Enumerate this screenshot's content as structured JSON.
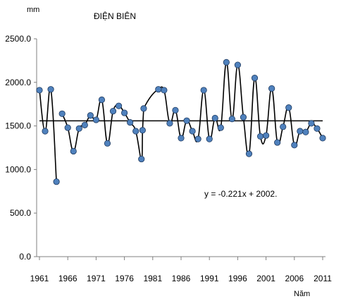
{
  "chart_data": {
    "type": "line",
    "title": "ĐIỆN BIÊN",
    "ylabel": "mm",
    "xlabel": "Năm",
    "ylim": [
      0,
      2500
    ],
    "xlim": [
      1961,
      2011
    ],
    "yticks": [
      0,
      500,
      1000,
      1500,
      2000,
      2500
    ],
    "ytick_labels": [
      "0.0",
      "500.0",
      "1000.0",
      "1500.0",
      "2000.0",
      "2500.0"
    ],
    "xticks": [
      1961,
      1966,
      1971,
      1976,
      1981,
      1986,
      1991,
      1996,
      2001,
      2006,
      2011
    ],
    "xtick_labels": [
      "1961",
      "1966",
      "1971",
      "1976",
      "1981",
      "1986",
      "1991",
      "1996",
      "2001",
      "2006",
      "2011"
    ],
    "grid": false,
    "annotation": "y = -0.221x + 2002.",
    "colors": {
      "marker": "#4f81bd",
      "line": "#000000"
    },
    "segments": [
      {
        "x": [
          1961,
          1962,
          1963,
          1964
        ],
        "y": [
          1910,
          1440,
          1920,
          860
        ]
      },
      {
        "x": [
          1965,
          1966,
          1967,
          1968,
          1969,
          1970,
          1971,
          1972,
          1973,
          1974,
          1975,
          1976,
          1977,
          1978,
          1979,
          1979.2,
          1979.4
        ],
        "y": [
          1640,
          1480,
          1210,
          1470,
          1510,
          1620,
          1570,
          1800,
          1300,
          1670,
          1730,
          1650,
          1540,
          1440,
          1120,
          1450,
          1700
        ]
      },
      {
        "x": [
          1982,
          1983,
          1984,
          1985,
          1986,
          1987,
          1988,
          1989,
          1990,
          1991,
          1992,
          1993,
          1994,
          1995,
          1996,
          1997,
          1998,
          1999,
          2000,
          2001,
          2002,
          2003,
          2004,
          2005,
          2006,
          2007,
          2008,
          2009,
          2010,
          2011
        ],
        "y": [
          1920,
          1910,
          1530,
          1680,
          1360,
          1560,
          1440,
          1350,
          1910,
          1350,
          1590,
          1480,
          2230,
          1580,
          2200,
          1600,
          1180,
          2050,
          1380,
          1390,
          1930,
          1310,
          1490,
          1710,
          1280,
          1440,
          1430,
          1530,
          1470,
          1360
        ]
      }
    ],
    "trend": {
      "y": 1558
    }
  }
}
